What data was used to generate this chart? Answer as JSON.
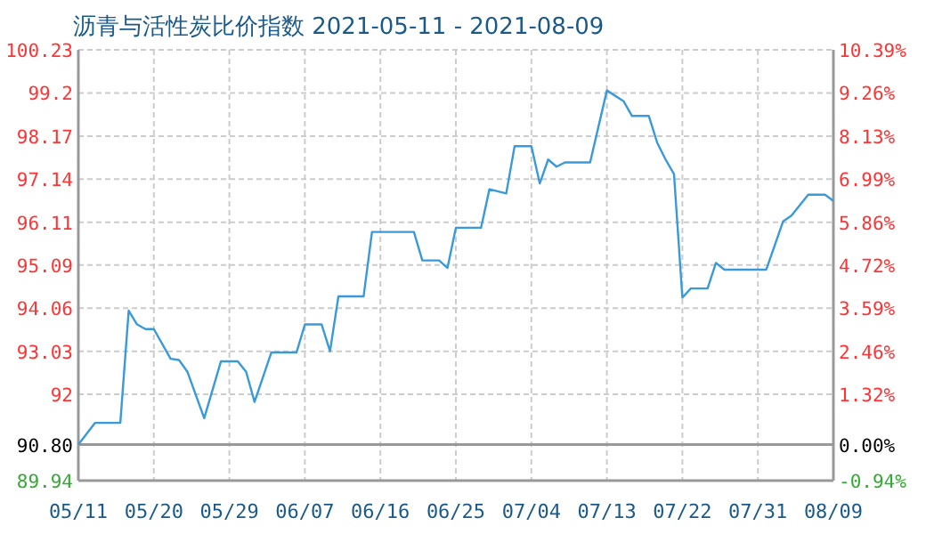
{
  "chart_data": {
    "type": "line",
    "title": "沥青与活性炭比价指数 2021-05-11 - 2021-08-09",
    "x": [
      "2021-05-11",
      "2021-05-13",
      "2021-05-16",
      "2021-05-17",
      "2021-05-18",
      "2021-05-19",
      "2021-05-20",
      "2021-05-22",
      "2021-05-23",
      "2021-05-24",
      "2021-05-26",
      "2021-05-28",
      "2021-05-30",
      "2021-05-31",
      "2021-06-01",
      "2021-06-03",
      "2021-06-06",
      "2021-06-07",
      "2021-06-09",
      "2021-06-10",
      "2021-06-11",
      "2021-06-14",
      "2021-06-15",
      "2021-06-20",
      "2021-06-21",
      "2021-06-23",
      "2021-06-24",
      "2021-06-25",
      "2021-06-28",
      "2021-06-29",
      "2021-07-01",
      "2021-07-02",
      "2021-07-04",
      "2021-07-05",
      "2021-07-06",
      "2021-07-07",
      "2021-07-08",
      "2021-07-11",
      "2021-07-13",
      "2021-07-15",
      "2021-07-16",
      "2021-07-18",
      "2021-07-19",
      "2021-07-20",
      "2021-07-21",
      "2021-07-22",
      "2021-07-23",
      "2021-07-25",
      "2021-07-26",
      "2021-07-27",
      "2021-08-01",
      "2021-08-03",
      "2021-08-04",
      "2021-08-06",
      "2021-08-08",
      "2021-08-09"
    ],
    "series": [
      {
        "color": "#3a9ad9",
        "values": [
          90.8,
          91.32,
          91.32,
          94.0,
          93.67,
          93.56,
          93.56,
          92.85,
          92.82,
          92.54,
          91.43,
          92.79,
          92.79,
          92.54,
          91.82,
          93.0,
          93.0,
          93.67,
          93.67,
          93.03,
          94.34,
          94.34,
          95.88,
          95.88,
          95.2,
          95.2,
          95.02,
          95.98,
          95.98,
          96.9,
          96.8,
          97.93,
          97.93,
          97.04,
          97.61,
          97.44,
          97.54,
          97.54,
          99.26,
          99.0,
          98.65,
          98.65,
          98.01,
          97.61,
          97.26,
          94.31,
          94.53,
          94.53,
          95.14,
          94.98,
          94.98,
          96.13,
          96.27,
          96.77,
          96.77,
          96.62
        ]
      }
    ],
    "xlim": [
      "2021-05-11",
      "2021-08-09"
    ],
    "xticks": [
      {
        "value": "2021-05-11",
        "label": "05/11"
      },
      {
        "value": "2021-05-20",
        "label": "05/20"
      },
      {
        "value": "2021-05-29",
        "label": "05/29"
      },
      {
        "value": "2021-06-07",
        "label": "06/07"
      },
      {
        "value": "2021-06-16",
        "label": "06/16"
      },
      {
        "value": "2021-06-25",
        "label": "06/25"
      },
      {
        "value": "2021-07-04",
        "label": "07/04"
      },
      {
        "value": "2021-07-13",
        "label": "07/13"
      },
      {
        "value": "2021-07-22",
        "label": "07/22"
      },
      {
        "value": "2021-07-31",
        "label": "07/31"
      },
      {
        "value": "2021-08-09",
        "label": "08/09"
      }
    ],
    "ylim": [
      89.94,
      100.23
    ],
    "yticks": [
      89.94,
      {
        "value": 90.8,
        "label": "90.80"
      },
      92,
      93.03,
      94.06,
      95.09,
      96.11,
      97.14,
      98.17,
      99.2,
      100.23
    ],
    "y2lim": [
      -0.94,
      10.39
    ],
    "y2ticks": [
      {
        "value": -0.94,
        "label": "-0.94%"
      },
      {
        "value": 0,
        "label": "0.00%"
      },
      {
        "value": 1.32,
        "label": "1.32%"
      },
      {
        "value": 2.46,
        "label": "2.46%"
      },
      {
        "value": 3.59,
        "label": "3.59%"
      },
      {
        "value": 4.72,
        "label": "4.72%"
      },
      {
        "value": 5.86,
        "label": "5.86%"
      },
      {
        "value": 6.99,
        "label": "6.99%"
      },
      {
        "value": 8.13,
        "label": "8.13%"
      },
      {
        "value": 9.26,
        "label": "9.26%"
      },
      {
        "value": 10.39,
        "label": "10.39%"
      }
    ],
    "ref_lines": [
      {
        "axis": "y",
        "value": 90.8,
        "color": "#999999"
      }
    ],
    "grid": true
  }
}
